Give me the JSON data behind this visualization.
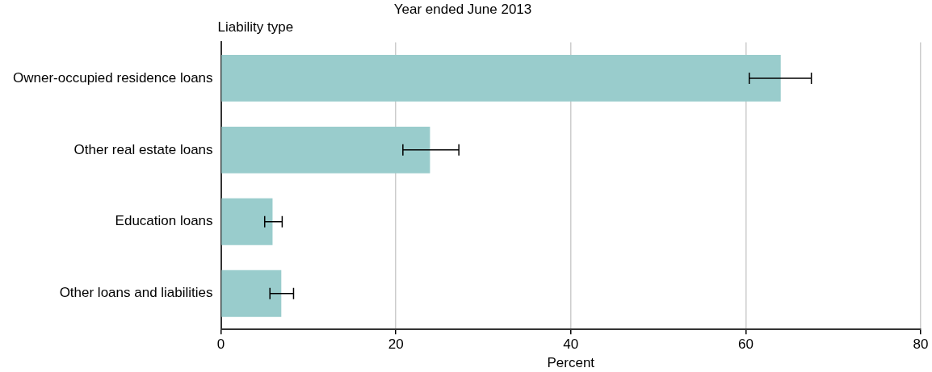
{
  "chart_data": {
    "type": "bar",
    "orientation": "horizontal",
    "title": "Year ended June 2013",
    "ylabel": "Liability type",
    "xlabel": "Percent",
    "categories": [
      "Owner-occupied residence loans",
      "Other real estate loans",
      "Education loans",
      "Other loans and liabilities"
    ],
    "values": [
      64.0,
      23.9,
      5.9,
      6.9
    ],
    "errors": [
      [
        60.4,
        67.5
      ],
      [
        20.8,
        27.2
      ],
      [
        5.0,
        7.0
      ],
      [
        5.6,
        8.3
      ]
    ],
    "color": "#99cccc",
    "xlim": [
      0,
      80
    ],
    "xticks": [
      0,
      20,
      40,
      60,
      80
    ],
    "grid": "x",
    "legend": false
  }
}
